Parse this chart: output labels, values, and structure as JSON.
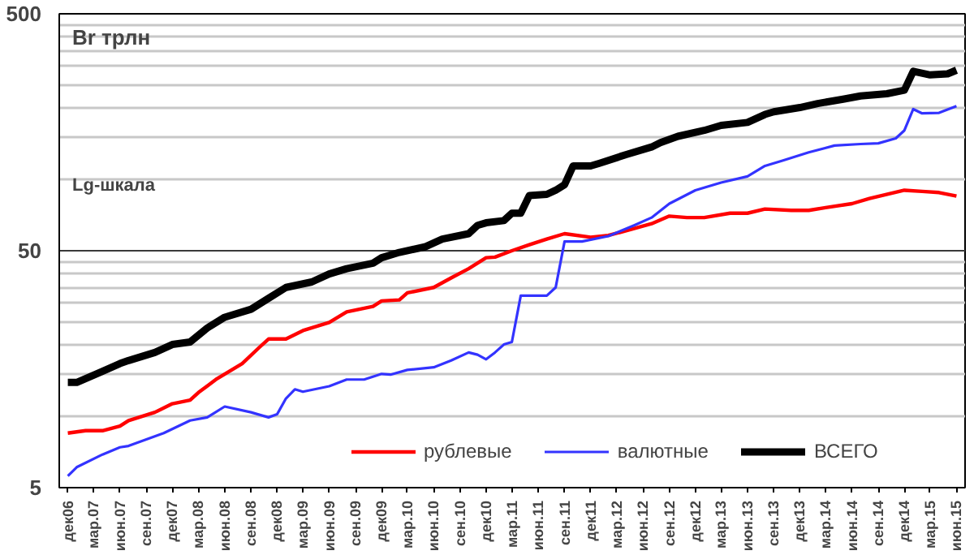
{
  "chart_data": {
    "type": "line",
    "annotations": [
      "Br трлн",
      "Lg-шкала"
    ],
    "log": true,
    "ylim": [
      5,
      500
    ],
    "yticks": [
      5,
      50,
      500
    ],
    "grid": "y",
    "legend": "bottom right",
    "xlim": [
      "2006-11",
      "2015-07"
    ],
    "xticks": [
      {
        "value": "2006-12",
        "label": "дек06"
      },
      {
        "value": "2007-03",
        "label": "мар.07"
      },
      {
        "value": "2007-06",
        "label": "июн.07"
      },
      {
        "value": "2007-09",
        "label": "сен.07"
      },
      {
        "value": "2007-12",
        "label": "дек07"
      },
      {
        "value": "2008-03",
        "label": "мар.08"
      },
      {
        "value": "2008-06",
        "label": "июн.08"
      },
      {
        "value": "2008-09",
        "label": "сен.08"
      },
      {
        "value": "2008-12",
        "label": "дек08"
      },
      {
        "value": "2009-03",
        "label": "мар.09"
      },
      {
        "value": "2009-06",
        "label": "июн.09"
      },
      {
        "value": "2009-09",
        "label": "сен.09"
      },
      {
        "value": "2009-12",
        "label": "дек09"
      },
      {
        "value": "2010-03",
        "label": "мар.10"
      },
      {
        "value": "2010-06",
        "label": "июн.10"
      },
      {
        "value": "2010-09",
        "label": "сен.10"
      },
      {
        "value": "2010-12",
        "label": "дек10"
      },
      {
        "value": "2011-03",
        "label": "мар.11"
      },
      {
        "value": "2011-06",
        "label": "июн.11"
      },
      {
        "value": "2011-09",
        "label": "сен.11"
      },
      {
        "value": "2011-12",
        "label": "дек11"
      },
      {
        "value": "2012-03",
        "label": "мар.12"
      },
      {
        "value": "2012-06",
        "label": "июн.12"
      },
      {
        "value": "2012-09",
        "label": "сен.12"
      },
      {
        "value": "2012-12",
        "label": "дек12"
      },
      {
        "value": "2013-03",
        "label": "мар.13"
      },
      {
        "value": "2013-06",
        "label": "июн.13"
      },
      {
        "value": "2013-09",
        "label": "сен.13"
      },
      {
        "value": "2013-12",
        "label": "дек13"
      },
      {
        "value": "2014-03",
        "label": "мар.14"
      },
      {
        "value": "2014-06",
        "label": "июн.14"
      },
      {
        "value": "2014-09",
        "label": "сен.14"
      },
      {
        "value": "2014-12",
        "label": "дек14"
      },
      {
        "value": "2015-03",
        "label": "мар.15"
      },
      {
        "value": "2015-06",
        "label": "июн.15"
      }
    ],
    "series": [
      {
        "name": "рублевые",
        "color": "#ff0000",
        "x": [
          "2006-12",
          "2007-02",
          "2007-04",
          "2007-06",
          "2007-07",
          "2007-10",
          "2007-12",
          "2008-02",
          "2008-03",
          "2008-05",
          "2008-08",
          "2008-10",
          "2008-11",
          "2009-01",
          "2009-03",
          "2009-06",
          "2009-08",
          "2009-11",
          "2009-12",
          "2010-02",
          "2010-03",
          "2010-06",
          "2010-08",
          "2010-10",
          "2010-12",
          "2011-01",
          "2011-03",
          "2011-05",
          "2011-07",
          "2011-09",
          "2011-12",
          "2012-02",
          "2012-05",
          "2012-07",
          "2012-09",
          "2012-11",
          "2013-01",
          "2013-04",
          "2013-06",
          "2013-08",
          "2013-11",
          "2014-01",
          "2014-03",
          "2014-06",
          "2014-08",
          "2014-12",
          "2015-02",
          "2015-04",
          "2015-06"
        ],
        "values": [
          8.5,
          8.7,
          8.7,
          9.1,
          9.6,
          10.4,
          11.3,
          11.7,
          12.6,
          14.3,
          16.7,
          19.6,
          21.2,
          21.2,
          23,
          24.9,
          27.6,
          29.1,
          30.7,
          31,
          33.2,
          35,
          38.4,
          42,
          46.7,
          47,
          50,
          53,
          56,
          59,
          57,
          58,
          62,
          65,
          70,
          69,
          69,
          72,
          72,
          75,
          74,
          74,
          76,
          79,
          83,
          90,
          89,
          88,
          85
        ]
      },
      {
        "name": "валютные",
        "color": "#3333ff",
        "x": [
          "2006-12",
          "2007-01",
          "2007-04",
          "2007-06",
          "2007-07",
          "2007-11",
          "2008-02",
          "2008-04",
          "2008-06",
          "2008-09",
          "2008-11",
          "2008-12",
          "2009-01",
          "2009-02",
          "2009-03",
          "2009-06",
          "2009-08",
          "2009-10",
          "2009-12",
          "2010-01",
          "2010-03",
          "2010-06",
          "2010-08",
          "2010-10",
          "2010-11",
          "2010-12",
          "2011-01",
          "2011-02",
          "2011-03",
          "2011-04",
          "2011-07",
          "2011-08",
          "2011-09",
          "2011-11",
          "2012-02",
          "2012-05",
          "2012-07",
          "2012-09",
          "2012-12",
          "2013-03",
          "2013-06",
          "2013-08",
          "2013-10",
          "2014-01",
          "2014-04",
          "2014-07",
          "2014-09",
          "2014-11",
          "2014-12",
          "2015-01",
          "2015-02",
          "2015-04",
          "2015-06"
        ],
        "values": [
          5.6,
          6.1,
          6.9,
          7.4,
          7.5,
          8.5,
          9.6,
          9.9,
          11,
          10.4,
          9.9,
          10.2,
          11.9,
          13,
          12.7,
          13.4,
          14.3,
          14.3,
          15.1,
          15,
          15.7,
          16.1,
          17.2,
          18.6,
          18.2,
          17.4,
          18.6,
          20.1,
          20.6,
          32.3,
          32.3,
          35,
          54.7,
          54.7,
          57.6,
          64,
          69,
          79,
          90,
          97,
          103,
          114,
          120,
          130,
          139,
          141,
          142,
          149,
          161,
          198,
          190,
          191,
          204
        ]
      },
      {
        "name": "ВСЕГО",
        "color": "#000000",
        "x": [
          "2006-12",
          "2007-01",
          "2007-04",
          "2007-06",
          "2007-07",
          "2007-10",
          "2007-12",
          "2008-02",
          "2008-04",
          "2008-06",
          "2008-09",
          "2008-11",
          "2009-01",
          "2009-04",
          "2009-06",
          "2009-08",
          "2009-11",
          "2009-12",
          "2010-02",
          "2010-05",
          "2010-07",
          "2010-10",
          "2010-11",
          "2010-12",
          "2011-02",
          "2011-03",
          "2011-04",
          "2011-05",
          "2011-07",
          "2011-08",
          "2011-09",
          "2011-10",
          "2011-12",
          "2012-01",
          "2012-04",
          "2012-07",
          "2012-08",
          "2012-10",
          "2013-01",
          "2013-03",
          "2013-06",
          "2013-08",
          "2013-09",
          "2013-12",
          "2014-02",
          "2014-05",
          "2014-07",
          "2014-10",
          "2014-12",
          "2015-01",
          "2015-03",
          "2015-05",
          "2015-06"
        ],
        "values": [
          13.9,
          13.9,
          15.5,
          16.7,
          17.2,
          18.6,
          20.1,
          20.6,
          23.6,
          26.2,
          28.3,
          31.5,
          35,
          36.9,
          39.9,
          42,
          44.3,
          46.7,
          49.2,
          51.9,
          56,
          59,
          64,
          65.6,
          67,
          72,
          72,
          85.5,
          86.5,
          90,
          95,
          114,
          114,
          117,
          127,
          137,
          143,
          152,
          161,
          169,
          174,
          188,
          193,
          201,
          209,
          218,
          225,
          230,
          238,
          286,
          276,
          279,
          289
        ]
      }
    ]
  }
}
